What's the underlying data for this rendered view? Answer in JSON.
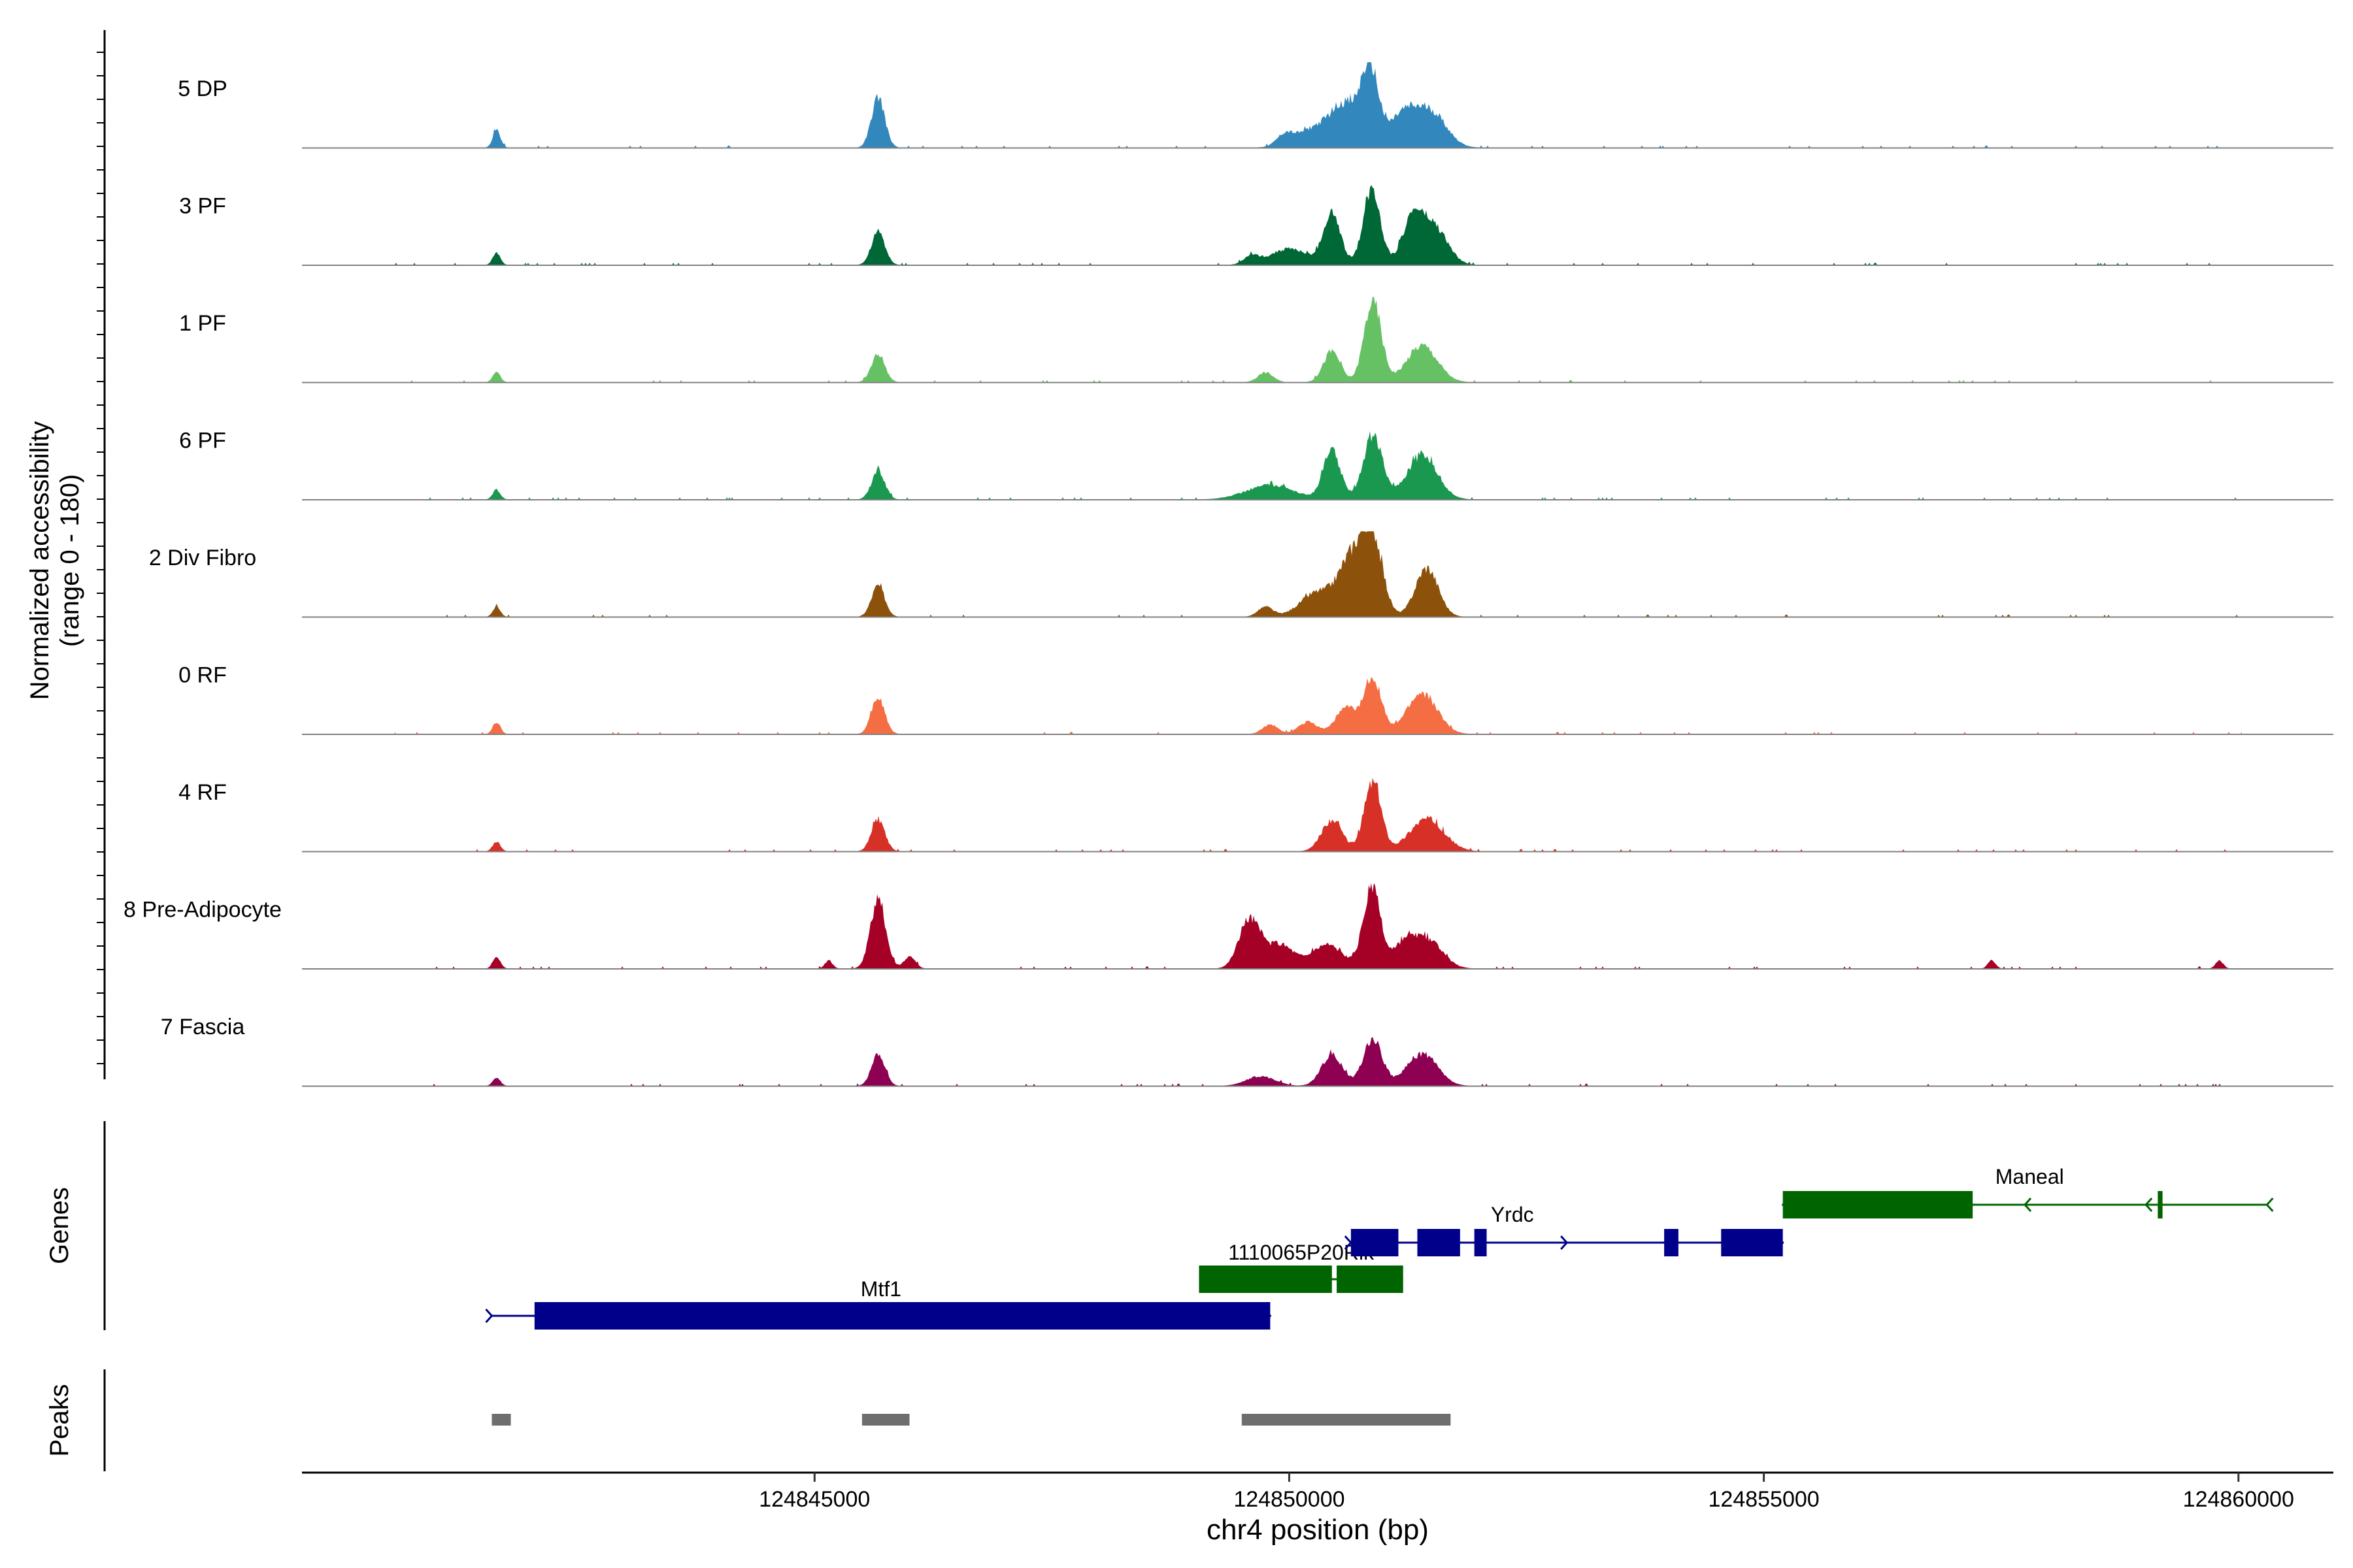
{
  "chart_data": {
    "type": "area",
    "title": "",
    "xlabel": "chr4 position (bp)",
    "ylabel_line1": "Normalized accessibility",
    "ylabel_line2": "(range 0 - 180)",
    "ylim": [
      0,
      180
    ],
    "xlim": [
      124839600,
      124861000
    ],
    "x_ticks": [
      124845000,
      124850000,
      124855000,
      124860000
    ],
    "x_tick_labels": [
      "124845000",
      "124850000",
      "124855000",
      "124860000"
    ],
    "tracks": [
      {
        "name": "5 DP",
        "color": "#3288BD",
        "peaks": [
          [
            124841650,
            0.22,
            40
          ],
          [
            124845670,
            0.62,
            70
          ],
          [
            124849950,
            0.12,
            80
          ],
          [
            124850300,
            0.25,
            220
          ],
          [
            124850600,
            0.45,
            140
          ],
          [
            124850850,
            0.95,
            90
          ],
          [
            124851200,
            0.4,
            150
          ],
          [
            124851500,
            0.42,
            160
          ]
        ]
      },
      {
        "name": "3 PF",
        "color": "#006837",
        "peaks": [
          [
            124841650,
            0.15,
            40
          ],
          [
            124845670,
            0.42,
            70
          ],
          [
            124849600,
            0.1,
            80
          ],
          [
            124850000,
            0.2,
            200
          ],
          [
            124850450,
            0.62,
            90
          ],
          [
            124850870,
            0.95,
            90
          ],
          [
            124851300,
            0.55,
            110
          ],
          [
            124851530,
            0.45,
            140
          ]
        ]
      },
      {
        "name": "1 PF",
        "color": "#66C164",
        "peaks": [
          [
            124841650,
            0.12,
            40
          ],
          [
            124845670,
            0.35,
            70
          ],
          [
            124849750,
            0.12,
            80
          ],
          [
            124850450,
            0.38,
            90
          ],
          [
            124850880,
            1.0,
            90
          ],
          [
            124851400,
            0.45,
            160
          ]
        ]
      },
      {
        "name": "6 PF",
        "color": "#1A9850",
        "peaks": [
          [
            124841650,
            0.12,
            40
          ],
          [
            124845670,
            0.35,
            70
          ],
          [
            124849800,
            0.18,
            250
          ],
          [
            124850450,
            0.6,
            90
          ],
          [
            124850880,
            0.8,
            100
          ],
          [
            124851400,
            0.55,
            160
          ]
        ]
      },
      {
        "name": "2 Div Fibro",
        "color": "#8C510A",
        "peaks": [
          [
            124841650,
            0.12,
            40
          ],
          [
            124845670,
            0.38,
            70
          ],
          [
            124849750,
            0.12,
            80
          ],
          [
            124850300,
            0.3,
            180
          ],
          [
            124850650,
            0.65,
            130
          ],
          [
            124850870,
            1.0,
            110
          ],
          [
            124851450,
            0.6,
            120
          ]
        ]
      },
      {
        "name": "0 RF",
        "color": "#F46D43",
        "peaks": [
          [
            124841650,
            0.15,
            40
          ],
          [
            124845670,
            0.45,
            70
          ],
          [
            124849800,
            0.12,
            80
          ],
          [
            124850200,
            0.15,
            100
          ],
          [
            124850600,
            0.32,
            110
          ],
          [
            124850880,
            0.7,
            90
          ],
          [
            124851400,
            0.5,
            160
          ]
        ]
      },
      {
        "name": "4 RF",
        "color": "#D73027",
        "peaks": [
          [
            124841650,
            0.12,
            40
          ],
          [
            124845670,
            0.4,
            70
          ],
          [
            124850450,
            0.38,
            110
          ],
          [
            124850880,
            0.85,
            90
          ],
          [
            124851450,
            0.4,
            180
          ]
        ]
      },
      {
        "name": "8 Pre-Adipocyte",
        "color": "#A50026",
        "peaks": [
          [
            124841650,
            0.15,
            40
          ],
          [
            124845150,
            0.1,
            40
          ],
          [
            124845670,
            0.85,
            80
          ],
          [
            124846000,
            0.15,
            60
          ],
          [
            124849580,
            0.6,
            110
          ],
          [
            124849900,
            0.3,
            150
          ],
          [
            124850400,
            0.3,
            160
          ],
          [
            124850870,
            1.0,
            90
          ],
          [
            124851200,
            0.25,
            120
          ],
          [
            124851450,
            0.35,
            160
          ],
          [
            124857400,
            0.1,
            40
          ],
          [
            124859800,
            0.1,
            40
          ]
        ]
      },
      {
        "name": "7 Fascia",
        "color": "#8E0152",
        "peaks": [
          [
            124841650,
            0.1,
            40
          ],
          [
            124845670,
            0.4,
            70
          ],
          [
            124849700,
            0.12,
            150
          ],
          [
            124850450,
            0.38,
            110
          ],
          [
            124850880,
            0.58,
            100
          ],
          [
            124851400,
            0.4,
            160
          ]
        ]
      }
    ],
    "genes_label": "Genes",
    "genes": [
      {
        "name": "Mtf1",
        "color": "#00008B",
        "start": 124841600,
        "end": 124849800,
        "strand": "+",
        "exons": [
          [
            124842050,
            124849800
          ]
        ]
      },
      {
        "name": "1110065P20Rik",
        "color": "#006400",
        "start": 124849050,
        "end": 124851200,
        "strand": "",
        "exons": [
          [
            124849050,
            124850450
          ],
          [
            124850500,
            124851200
          ]
        ]
      },
      {
        "name": "Yrdc",
        "color": "#00008B",
        "start": 124850650,
        "end": 124855200,
        "strand": "+",
        "exons": [
          [
            124850650,
            124851150
          ],
          [
            124851350,
            124851800
          ],
          [
            124851950,
            124852080
          ],
          [
            124853950,
            124854100
          ],
          [
            124854550,
            124855200
          ]
        ]
      },
      {
        "name": "Maneal",
        "color": "#006400",
        "start": 124855200,
        "end": 124860300,
        "strand": "-",
        "exons": [
          [
            124855200,
            124857200
          ],
          [
            124859150,
            124859200
          ]
        ]
      }
    ],
    "peaks_label": "Peaks",
    "peak_regions": [
      [
        124841600,
        124841800
      ],
      [
        124845500,
        124846000
      ],
      [
        124849500,
        124851700
      ]
    ]
  }
}
